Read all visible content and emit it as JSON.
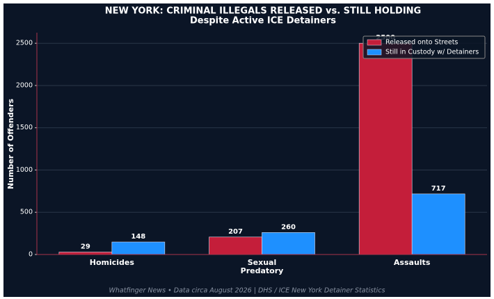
{
  "chart_data": {
    "type": "bar",
    "title": "NEW YORK: CRIMINAL ILLEGALS RELEASED vs. STILL HOLDING",
    "subtitle": "Despite Active ICE Detainers",
    "y_label": "Number of Offenders",
    "footnote": "Whatfinger News • Data circa August 2026 | DHS / ICE New York Detainer Statistics",
    "categories": [
      "Homicides",
      "Sexual\nPredatory",
      "Assaults"
    ],
    "series": [
      {
        "name": "Released onto Streets",
        "color": "#c41e3a",
        "values": [
          29,
          207,
          2500
        ]
      },
      {
        "name": "Still in Custody w/ Detainers",
        "color": "#1e90ff",
        "values": [
          148,
          260,
          717
        ]
      }
    ],
    "ylim": [
      0,
      2625
    ],
    "yticks": [
      0,
      500,
      1000,
      1500,
      2000,
      2500
    ],
    "grid": true,
    "legend": "upper right"
  }
}
